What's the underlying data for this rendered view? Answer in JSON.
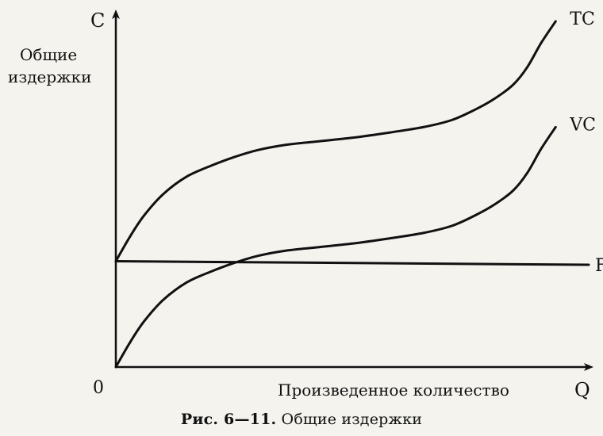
{
  "chart_data": {
    "type": "line",
    "title": "",
    "y_axis_letter": "C",
    "y_axis_label_line1": "Общие",
    "y_axis_label_line2": "издержки",
    "x_axis_letter": "Q",
    "x_axis_label": "Произведенное количество",
    "origin_label": "0",
    "xlim": [
      0,
      100
    ],
    "ylim": [
      0,
      100
    ],
    "grid": false,
    "series": [
      {
        "name": "TC",
        "x": [
          0,
          3,
          6,
          10,
          15,
          20,
          25,
          30,
          36,
          43,
          50,
          58,
          65,
          71,
          76,
          80,
          84,
          87,
          90,
          93
        ],
        "y": [
          30,
          37,
          43,
          49,
          54,
          57,
          59.5,
          61.5,
          63,
          64,
          65,
          66.5,
          68,
          70,
          73,
          76,
          80,
          85,
          92,
          98
        ]
      },
      {
        "name": "VC",
        "x": [
          0,
          3,
          6,
          10,
          15,
          20,
          25,
          30,
          36,
          43,
          50,
          58,
          65,
          71,
          76,
          80,
          84,
          87,
          90,
          93
        ],
        "y": [
          0,
          7,
          13,
          19,
          24,
          27,
          29.5,
          31.5,
          33,
          34,
          35,
          36.5,
          38,
          40,
          43,
          46,
          50,
          55,
          62,
          68
        ]
      },
      {
        "name": "FC",
        "x": [
          0,
          100
        ],
        "y": [
          30,
          29
        ]
      }
    ]
  },
  "caption": {
    "prefix": "Рис. 6—11.",
    "text": " Общие издержки"
  }
}
